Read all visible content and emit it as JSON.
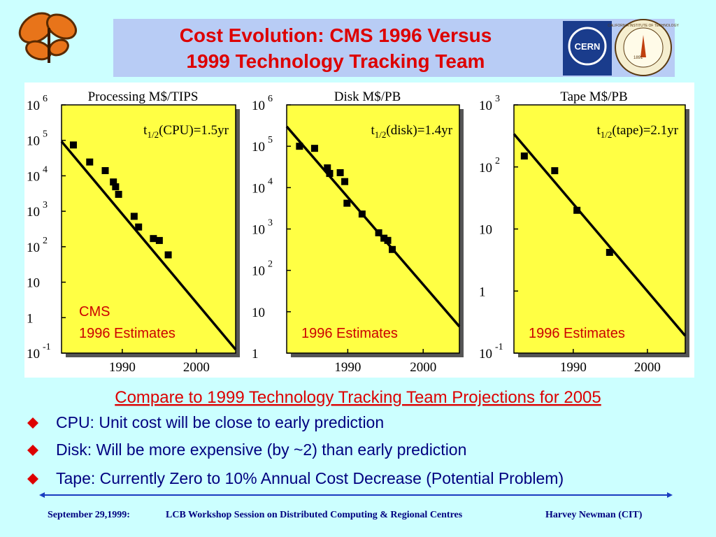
{
  "title_lines": [
    "Cost Evolution: CMS 1996 Versus",
    "1999 Technology Tracking Team"
  ],
  "logos": {
    "cern": "CERN",
    "caltech": "CALIFORNIA INSTITUTE OF TECHNOLOGY",
    "year": "1891"
  },
  "chart_data": [
    {
      "type": "scatter",
      "title": "Processing M$/TIPS",
      "y_scale": "log",
      "color": "#000000",
      "background": "#ffff44",
      "x": [
        1983.4,
        1985.6,
        1987.7,
        1988.8,
        1989.1,
        1989.5,
        1991.6,
        1992.2,
        1994.2,
        1995.0,
        1996.2
      ],
      "values": [
        74000,
        24500,
        14000,
        6700,
        4900,
        3000,
        720,
        360,
        170,
        150,
        59
      ],
      "fit": {
        "x": [
          1981.8,
          2005.3
        ],
        "values": [
          93000,
          0.126
        ]
      },
      "xlim": [
        1981.8,
        2005.3
      ],
      "ylim": [
        0.1,
        1000000
      ],
      "xticks": [
        1990,
        2000
      ],
      "yticks": [
        {
          "value": 1000000,
          "label": "10",
          "exponent": "6"
        },
        {
          "value": 100000,
          "label": "10",
          "exponent": "5"
        },
        {
          "value": 10000,
          "label": "10",
          "exponent": "4"
        },
        {
          "value": 1000,
          "label": "10",
          "exponent": "3"
        },
        {
          "value": 100,
          "label": "10",
          "exponent": "2"
        },
        10,
        1,
        {
          "value": 0.1,
          "label": "10",
          "exponent": "-1"
        }
      ],
      "annotation": {
        "text": "t",
        "sub": "1/2",
        "rest": "(CPU)=1.5yr"
      },
      "labels": [
        "CMS",
        "1996 Estimates"
      ]
    },
    {
      "type": "scatter",
      "title": "Disk M$/PB",
      "y_scale": "log",
      "color": "#000000",
      "background": "#ffff44",
      "x": [
        1983.6,
        1985.6,
        1987.3,
        1987.6,
        1989.0,
        1989.6,
        1989.9,
        1991.9,
        1994.1,
        1994.8,
        1995.3,
        1995.9
      ],
      "values": [
        100000,
        89000,
        30000,
        22000,
        23000,
        14000,
        4200,
        2300,
        810,
        600,
        530,
        320
      ],
      "fit": {
        "x": [
          1981.9,
          2004.8
        ],
        "values": [
          300000,
          4.4
        ]
      },
      "xlim": [
        1981.9,
        2004.8
      ],
      "ylim": [
        1,
        1000000
      ],
      "xticks": [
        1990,
        2000
      ],
      "yticks": [
        {
          "value": 1000000,
          "label": "10",
          "exponent": "6"
        },
        {
          "value": 100000,
          "label": "10",
          "exponent": "5"
        },
        {
          "value": 10000,
          "label": "10",
          "exponent": "4"
        },
        {
          "value": 1000,
          "label": "10",
          "exponent": "3"
        },
        {
          "value": 100,
          "label": "10",
          "exponent": "2"
        },
        10,
        1
      ],
      "annotation": {
        "text": "t",
        "sub": "1/2",
        "rest": "(disk)=1.4yr"
      },
      "labels": [
        "1996 Estimates"
      ]
    },
    {
      "type": "scatter",
      "title": "Tape M$/PB",
      "y_scale": "log",
      "color": "#000000",
      "background": "#ffff44",
      "x": [
        1983.4,
        1987.5,
        1990.5,
        1994.9
      ],
      "values": [
        150,
        87,
        20,
        4.2
      ],
      "fit": {
        "x": [
          1982.0,
          2005.1
        ],
        "values": [
          340,
          0.19
        ]
      },
      "xlim": [
        1982.0,
        2005.1
      ],
      "ylim": [
        0.1,
        1000
      ],
      "xticks": [
        1990,
        2000
      ],
      "yticks": [
        {
          "value": 1000,
          "label": "10",
          "exponent": "3"
        },
        {
          "value": 100,
          "label": "10",
          "exponent": "2"
        },
        10,
        1,
        {
          "value": 0.1,
          "label": "10",
          "exponent": "-1"
        }
      ],
      "annotation": {
        "text": "t",
        "sub": "1/2",
        "rest": "(tape)=2.1yr"
      },
      "labels": [
        "1996 Estimates"
      ]
    }
  ],
  "subtitle": "Compare to 1999 Technology Tracking Team Projections for 2005",
  "bullets": [
    "CPU: Unit cost will be close to early prediction",
    "Disk: Will be more expensive (by ~2) than early prediction",
    "Tape: Currently Zero to 10% Annual Cost Decrease (Potential Problem)"
  ],
  "footer": [
    "September 29,1999:",
    "LCB Workshop Session on Distributed Computing  & Regional Centres",
    "Harvey Newman (CIT)"
  ]
}
